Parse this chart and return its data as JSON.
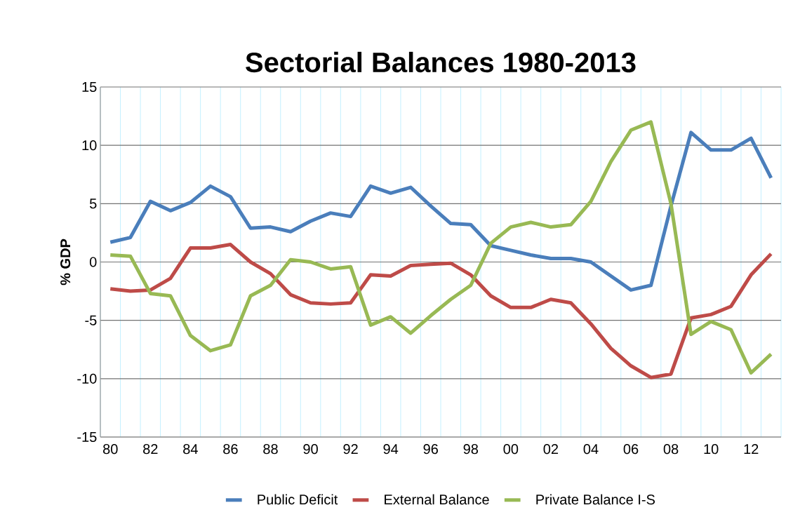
{
  "chart_data": {
    "type": "line",
    "title": "Sectorial Balances 1980-2013",
    "ylabel": "% GDP",
    "categories": [
      "80",
      null,
      "82",
      null,
      "84",
      null,
      "86",
      null,
      "88",
      null,
      "90",
      null,
      "92",
      null,
      "94",
      null,
      "96",
      null,
      "98",
      null,
      "00",
      null,
      "02",
      null,
      "04",
      null,
      "06",
      null,
      "08",
      null,
      "10",
      null,
      "12",
      null
    ],
    "series": [
      {
        "name": "Public Deficit",
        "color": "#4a7ebb",
        "values": [
          1.7,
          2.1,
          5.2,
          4.4,
          5.1,
          6.5,
          5.6,
          2.9,
          3.0,
          2.6,
          3.5,
          4.2,
          3.9,
          6.5,
          5.9,
          6.4,
          4.8,
          3.3,
          3.2,
          1.4,
          1.0,
          0.6,
          0.3,
          0.3,
          0.0,
          -1.2,
          -2.4,
          -2.0,
          4.8,
          11.1,
          9.6,
          9.6,
          10.6,
          7.2
        ]
      },
      {
        "name": "External Balance",
        "color": "#be4b48",
        "values": [
          -2.3,
          -2.5,
          -2.4,
          -1.4,
          1.2,
          1.2,
          1.5,
          0.0,
          -1.0,
          -2.8,
          -3.5,
          -3.6,
          -3.5,
          -1.1,
          -1.2,
          -0.3,
          -0.2,
          -0.1,
          -1.1,
          -2.9,
          -3.9,
          -3.9,
          -3.2,
          -3.5,
          -5.3,
          -7.4,
          -8.9,
          -9.9,
          -9.6,
          -4.8,
          -4.5,
          -3.8,
          -1.1,
          0.7
        ]
      },
      {
        "name": "Private Balance I-S",
        "color": "#98b954",
        "values": [
          0.6,
          0.5,
          -2.7,
          -2.9,
          -6.3,
          -7.6,
          -7.1,
          -2.9,
          -2.0,
          0.2,
          0.0,
          -0.6,
          -0.4,
          -5.4,
          -4.7,
          -6.1,
          -4.6,
          -3.2,
          -2.0,
          1.6,
          3.0,
          3.4,
          3.0,
          3.2,
          5.2,
          8.6,
          11.3,
          12.0,
          5.0,
          -6.2,
          -5.1,
          -5.8,
          -9.5,
          -7.9
        ]
      }
    ],
    "ylim": [
      -15,
      15
    ],
    "yticks": [
      -15,
      -10,
      -5,
      0,
      5,
      10,
      15
    ],
    "grid": true,
    "legend": "bottom",
    "marker": "none",
    "line_style": "solid"
  }
}
